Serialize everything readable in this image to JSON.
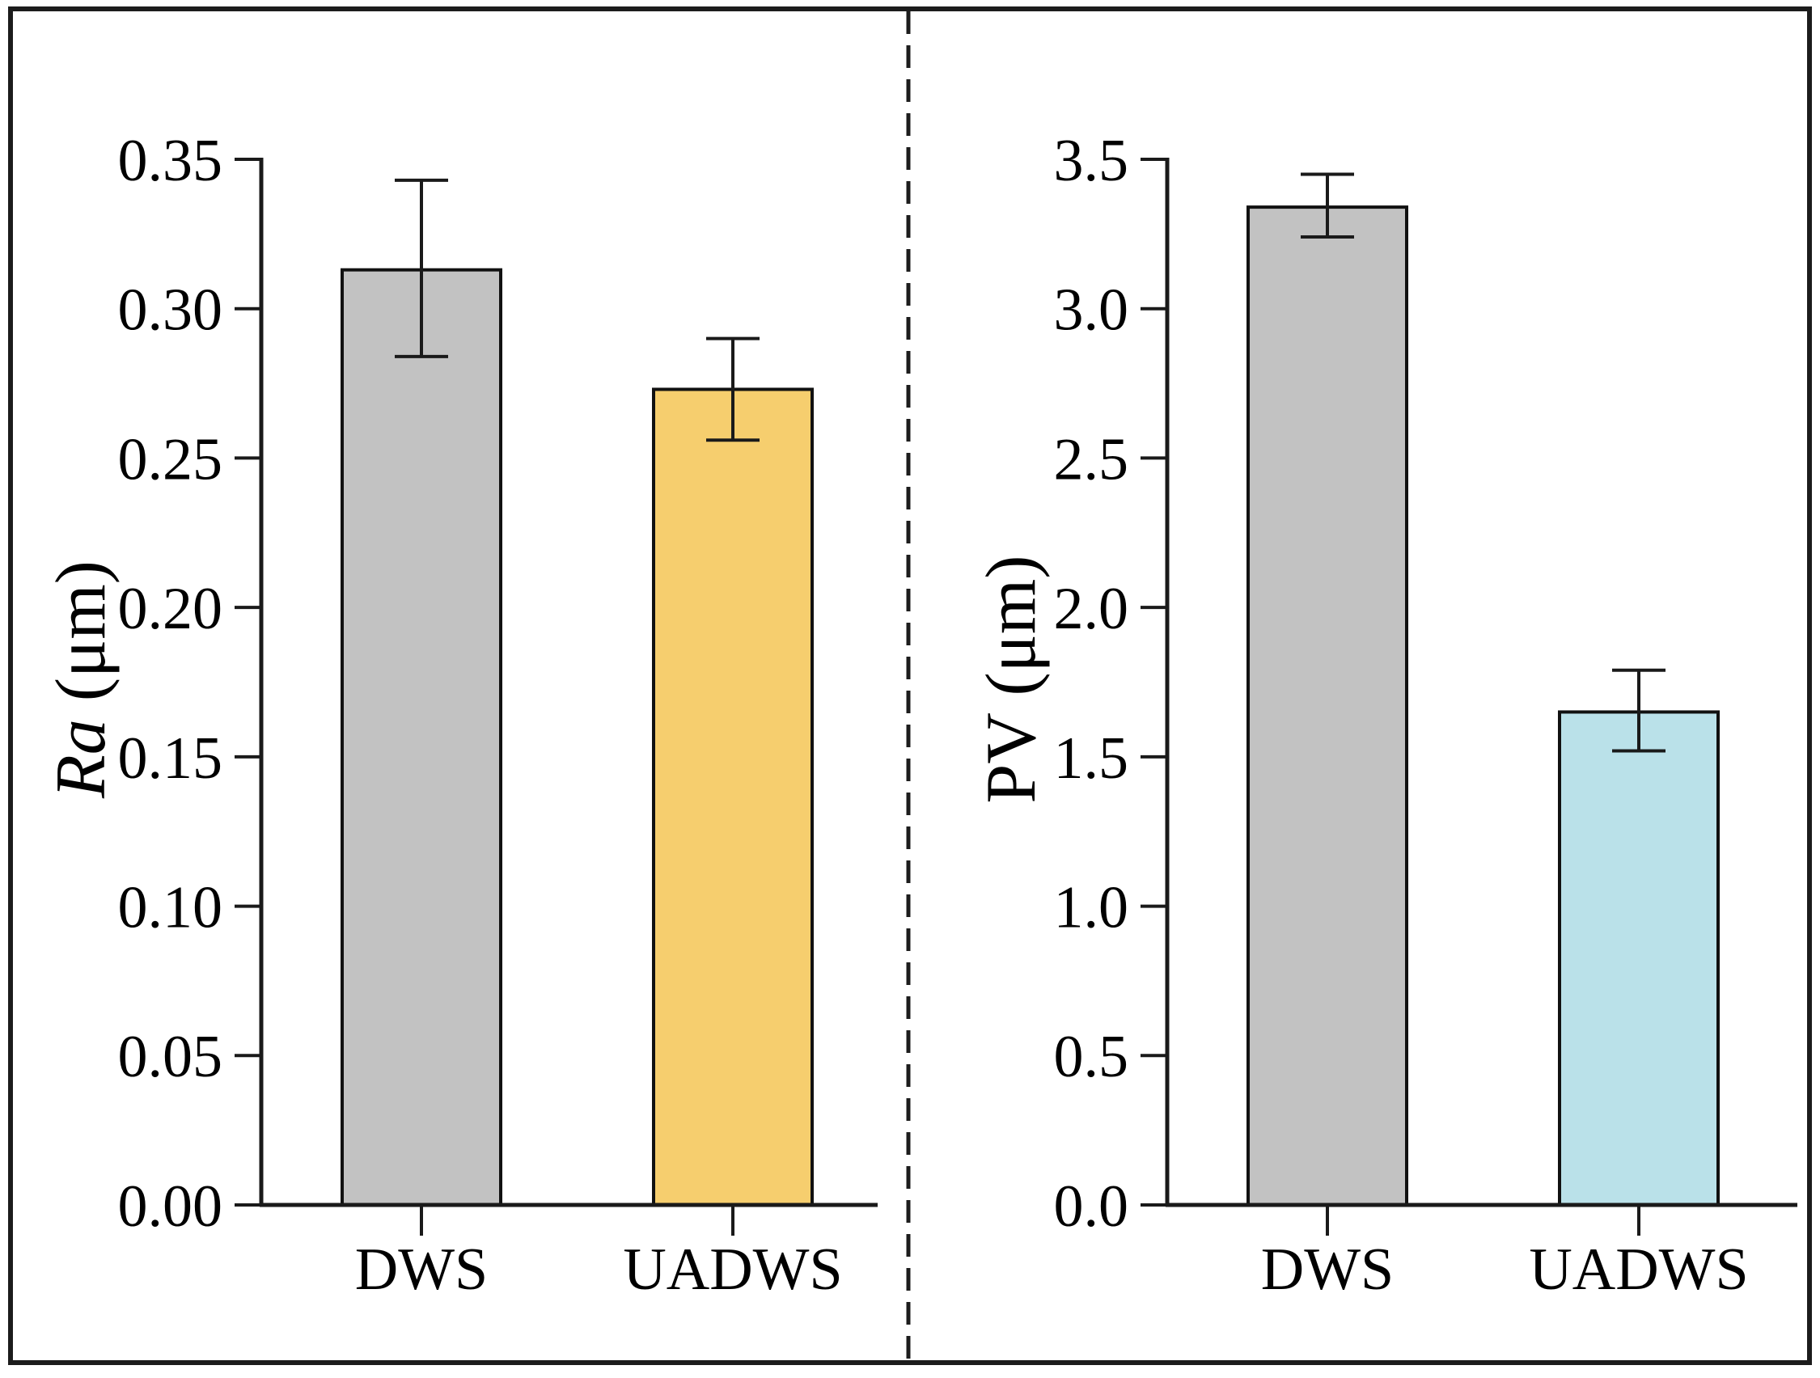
{
  "figure": {
    "background": "#ffffff",
    "border_color": "#1c1c1c",
    "divider_color": "#1c1c1c",
    "divider_style": "dashed",
    "axis_color": "#1a1a1a",
    "error_bar_color": "#1a1a1a"
  },
  "chart_data": [
    {
      "type": "bar",
      "panel": "left",
      "title": "",
      "xlabel": "",
      "ylabel": "Ra (μm)",
      "ylabel_parts": [
        {
          "text": "Ra",
          "italic": true
        },
        {
          "text": " (μm)",
          "italic": false
        }
      ],
      "categories": [
        "DWS",
        "UADWS"
      ],
      "values": [
        0.313,
        0.273
      ],
      "error_low": [
        0.284,
        0.256
      ],
      "error_high": [
        0.343,
        0.29
      ],
      "bar_colors": [
        "#C2C2C2",
        "#F6CE6E"
      ],
      "bar_edge_color": "#111111",
      "ylim": [
        0,
        0.35
      ],
      "yticks": [
        0,
        0.05,
        0.1,
        0.15,
        0.2,
        0.25,
        0.3,
        0.35
      ],
      "ytick_labels": [
        "0.00",
        "0.05",
        "0.10",
        "0.15",
        "0.20",
        "0.25",
        "0.30",
        "0.35"
      ],
      "grid": false,
      "legend": "none",
      "error_bars": true
    },
    {
      "type": "bar",
      "panel": "right",
      "title": "",
      "xlabel": "",
      "ylabel": "PV (μm)",
      "ylabel_parts": [
        {
          "text": "PV (μm)",
          "italic": false
        }
      ],
      "categories": [
        "DWS",
        "UADWS"
      ],
      "values": [
        3.34,
        1.65
      ],
      "error_low": [
        3.24,
        1.52
      ],
      "error_high": [
        3.45,
        1.79
      ],
      "bar_colors": [
        "#C2C2C2",
        "#BAE1E9"
      ],
      "bar_edge_color": "#111111",
      "ylim": [
        0,
        3.5
      ],
      "yticks": [
        0,
        0.5,
        1.0,
        1.5,
        2.0,
        2.5,
        3.0,
        3.5
      ],
      "ytick_labels": [
        "0.0",
        "0.5",
        "1.0",
        "1.5",
        "2.0",
        "2.5",
        "3.0",
        "3.5"
      ],
      "grid": false,
      "legend": "none",
      "error_bars": true
    }
  ]
}
